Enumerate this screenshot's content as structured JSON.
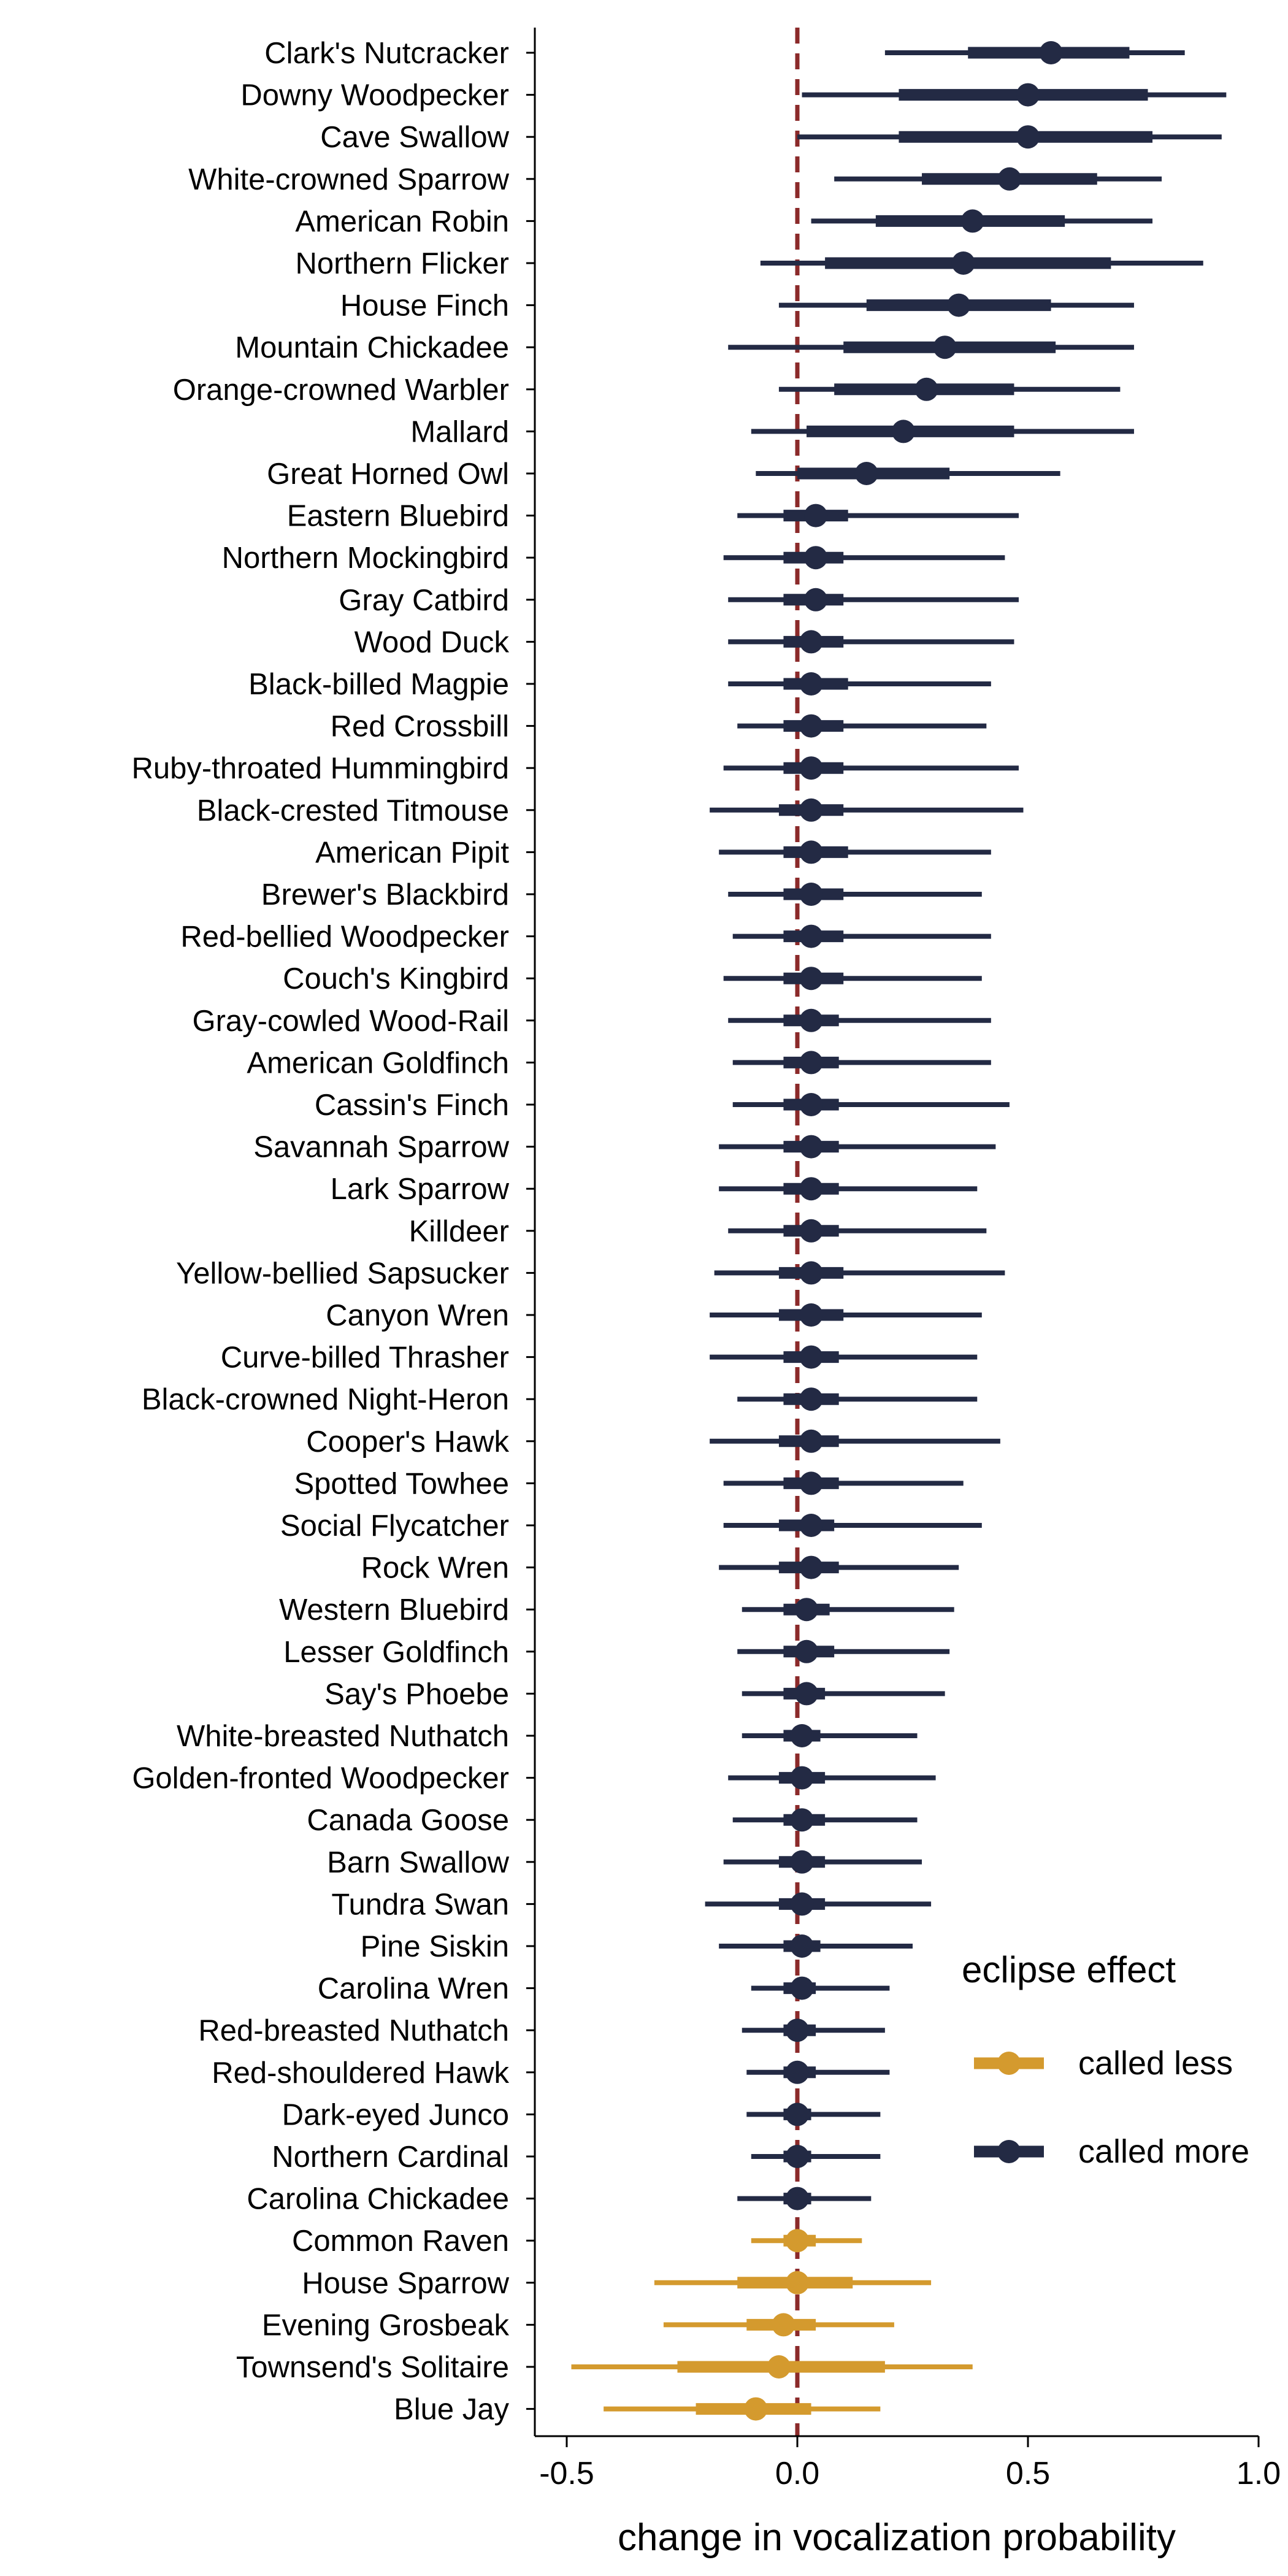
{
  "chart_data": {
    "type": "point-range",
    "xlabel": "change in vocalization probability",
    "ylabel": "",
    "xlim": [
      -0.57,
      1.0
    ],
    "xticks": [
      -0.5,
      0.0,
      0.5,
      1.0
    ],
    "xtick_labels": [
      "-0.5",
      "0.0",
      "0.5",
      "1.0"
    ],
    "reference_line": {
      "x": 0,
      "style": "dashed",
      "color": "#8B2A2A"
    },
    "grid": false,
    "legend": {
      "title": "eclipse effect",
      "placement": "right",
      "entries": [
        {
          "label": "called less",
          "color": "#D49A2E"
        },
        {
          "label": "called more",
          "color": "#232A44"
        }
      ]
    },
    "colors": {
      "called_less": "#D49A2E",
      "called_more": "#232A44"
    },
    "species": [
      {
        "name": "Clark's Nutcracker",
        "estimate": 0.55,
        "inner": [
          0.37,
          0.72
        ],
        "outer": [
          0.19,
          0.84
        ],
        "effect": "called more"
      },
      {
        "name": "Downy Woodpecker",
        "estimate": 0.5,
        "inner": [
          0.22,
          0.76
        ],
        "outer": [
          0.01,
          0.93
        ],
        "effect": "called more"
      },
      {
        "name": "Cave Swallow",
        "estimate": 0.5,
        "inner": [
          0.22,
          0.77
        ],
        "outer": [
          0.0,
          0.92
        ],
        "effect": "called more"
      },
      {
        "name": "White-crowned Sparrow",
        "estimate": 0.46,
        "inner": [
          0.27,
          0.65
        ],
        "outer": [
          0.08,
          0.79
        ],
        "effect": "called more"
      },
      {
        "name": "American Robin",
        "estimate": 0.38,
        "inner": [
          0.17,
          0.58
        ],
        "outer": [
          0.03,
          0.77
        ],
        "effect": "called more"
      },
      {
        "name": "Northern Flicker",
        "estimate": 0.36,
        "inner": [
          0.06,
          0.68
        ],
        "outer": [
          -0.08,
          0.88
        ],
        "effect": "called more"
      },
      {
        "name": "House Finch",
        "estimate": 0.35,
        "inner": [
          0.15,
          0.55
        ],
        "outer": [
          -0.04,
          0.73
        ],
        "effect": "called more"
      },
      {
        "name": "Mountain Chickadee",
        "estimate": 0.32,
        "inner": [
          0.1,
          0.56
        ],
        "outer": [
          -0.15,
          0.73
        ],
        "effect": "called more"
      },
      {
        "name": "Orange-crowned Warbler",
        "estimate": 0.28,
        "inner": [
          0.08,
          0.47
        ],
        "outer": [
          -0.04,
          0.7
        ],
        "effect": "called more"
      },
      {
        "name": "Mallard",
        "estimate": 0.23,
        "inner": [
          0.02,
          0.47
        ],
        "outer": [
          -0.1,
          0.73
        ],
        "effect": "called more"
      },
      {
        "name": "Great Horned Owl",
        "estimate": 0.15,
        "inner": [
          0.0,
          0.33
        ],
        "outer": [
          -0.09,
          0.57
        ],
        "effect": "called more"
      },
      {
        "name": "Eastern Bluebird",
        "estimate": 0.04,
        "inner": [
          -0.03,
          0.11
        ],
        "outer": [
          -0.13,
          0.48
        ],
        "effect": "called more"
      },
      {
        "name": "Northern Mockingbird",
        "estimate": 0.04,
        "inner": [
          -0.03,
          0.1
        ],
        "outer": [
          -0.16,
          0.45
        ],
        "effect": "called more"
      },
      {
        "name": "Gray Catbird",
        "estimate": 0.04,
        "inner": [
          -0.03,
          0.1
        ],
        "outer": [
          -0.15,
          0.48
        ],
        "effect": "called more"
      },
      {
        "name": "Wood Duck",
        "estimate": 0.03,
        "inner": [
          -0.03,
          0.1
        ],
        "outer": [
          -0.15,
          0.47
        ],
        "effect": "called more"
      },
      {
        "name": "Black-billed Magpie",
        "estimate": 0.03,
        "inner": [
          -0.03,
          0.11
        ],
        "outer": [
          -0.15,
          0.42
        ],
        "effect": "called more"
      },
      {
        "name": "Red Crossbill",
        "estimate": 0.03,
        "inner": [
          -0.03,
          0.1
        ],
        "outer": [
          -0.13,
          0.41
        ],
        "effect": "called more"
      },
      {
        "name": "Ruby-throated Hummingbird",
        "estimate": 0.03,
        "inner": [
          -0.03,
          0.1
        ],
        "outer": [
          -0.16,
          0.48
        ],
        "effect": "called more"
      },
      {
        "name": "Black-crested Titmouse",
        "estimate": 0.03,
        "inner": [
          -0.04,
          0.1
        ],
        "outer": [
          -0.19,
          0.49
        ],
        "effect": "called more"
      },
      {
        "name": "American Pipit",
        "estimate": 0.03,
        "inner": [
          -0.03,
          0.11
        ],
        "outer": [
          -0.17,
          0.42
        ],
        "effect": "called more"
      },
      {
        "name": "Brewer's Blackbird",
        "estimate": 0.03,
        "inner": [
          -0.03,
          0.1
        ],
        "outer": [
          -0.15,
          0.4
        ],
        "effect": "called more"
      },
      {
        "name": "Red-bellied Woodpecker",
        "estimate": 0.03,
        "inner": [
          -0.03,
          0.1
        ],
        "outer": [
          -0.14,
          0.42
        ],
        "effect": "called more"
      },
      {
        "name": "Couch's Kingbird",
        "estimate": 0.03,
        "inner": [
          -0.03,
          0.1
        ],
        "outer": [
          -0.16,
          0.4
        ],
        "effect": "called more"
      },
      {
        "name": "Gray-cowled Wood-Rail",
        "estimate": 0.03,
        "inner": [
          -0.03,
          0.09
        ],
        "outer": [
          -0.15,
          0.42
        ],
        "effect": "called more"
      },
      {
        "name": "American Goldfinch",
        "estimate": 0.03,
        "inner": [
          -0.03,
          0.09
        ],
        "outer": [
          -0.14,
          0.42
        ],
        "effect": "called more"
      },
      {
        "name": "Cassin's Finch",
        "estimate": 0.03,
        "inner": [
          -0.03,
          0.09
        ],
        "outer": [
          -0.14,
          0.46
        ],
        "effect": "called more"
      },
      {
        "name": "Savannah Sparrow",
        "estimate": 0.03,
        "inner": [
          -0.03,
          0.09
        ],
        "outer": [
          -0.17,
          0.43
        ],
        "effect": "called more"
      },
      {
        "name": "Lark Sparrow",
        "estimate": 0.03,
        "inner": [
          -0.03,
          0.09
        ],
        "outer": [
          -0.17,
          0.39
        ],
        "effect": "called more"
      },
      {
        "name": "Killdeer",
        "estimate": 0.03,
        "inner": [
          -0.03,
          0.09
        ],
        "outer": [
          -0.15,
          0.41
        ],
        "effect": "called more"
      },
      {
        "name": "Yellow-bellied Sapsucker",
        "estimate": 0.03,
        "inner": [
          -0.04,
          0.1
        ],
        "outer": [
          -0.18,
          0.45
        ],
        "effect": "called more"
      },
      {
        "name": "Canyon Wren",
        "estimate": 0.03,
        "inner": [
          -0.04,
          0.1
        ],
        "outer": [
          -0.19,
          0.4
        ],
        "effect": "called more"
      },
      {
        "name": "Curve-billed Thrasher",
        "estimate": 0.03,
        "inner": [
          -0.03,
          0.09
        ],
        "outer": [
          -0.19,
          0.39
        ],
        "effect": "called more"
      },
      {
        "name": "Black-crowned Night-Heron",
        "estimate": 0.03,
        "inner": [
          -0.03,
          0.09
        ],
        "outer": [
          -0.13,
          0.39
        ],
        "effect": "called more"
      },
      {
        "name": "Cooper's Hawk",
        "estimate": 0.03,
        "inner": [
          -0.04,
          0.09
        ],
        "outer": [
          -0.19,
          0.44
        ],
        "effect": "called more"
      },
      {
        "name": "Spotted Towhee",
        "estimate": 0.03,
        "inner": [
          -0.03,
          0.09
        ],
        "outer": [
          -0.16,
          0.36
        ],
        "effect": "called more"
      },
      {
        "name": "Social Flycatcher",
        "estimate": 0.03,
        "inner": [
          -0.04,
          0.08
        ],
        "outer": [
          -0.16,
          0.4
        ],
        "effect": "called more"
      },
      {
        "name": "Rock Wren",
        "estimate": 0.03,
        "inner": [
          -0.04,
          0.09
        ],
        "outer": [
          -0.17,
          0.35
        ],
        "effect": "called more"
      },
      {
        "name": "Western Bluebird",
        "estimate": 0.02,
        "inner": [
          -0.03,
          0.07
        ],
        "outer": [
          -0.12,
          0.34
        ],
        "effect": "called more"
      },
      {
        "name": "Lesser Goldfinch",
        "estimate": 0.02,
        "inner": [
          -0.03,
          0.08
        ],
        "outer": [
          -0.13,
          0.33
        ],
        "effect": "called more"
      },
      {
        "name": "Say's Phoebe",
        "estimate": 0.02,
        "inner": [
          -0.03,
          0.06
        ],
        "outer": [
          -0.12,
          0.32
        ],
        "effect": "called more"
      },
      {
        "name": "White-breasted Nuthatch",
        "estimate": 0.01,
        "inner": [
          -0.03,
          0.05
        ],
        "outer": [
          -0.12,
          0.26
        ],
        "effect": "called more"
      },
      {
        "name": "Golden-fronted Woodpecker",
        "estimate": 0.01,
        "inner": [
          -0.04,
          0.06
        ],
        "outer": [
          -0.15,
          0.3
        ],
        "effect": "called more"
      },
      {
        "name": "Canada Goose",
        "estimate": 0.01,
        "inner": [
          -0.03,
          0.06
        ],
        "outer": [
          -0.14,
          0.26
        ],
        "effect": "called more"
      },
      {
        "name": "Barn Swallow",
        "estimate": 0.01,
        "inner": [
          -0.04,
          0.06
        ],
        "outer": [
          -0.16,
          0.27
        ],
        "effect": "called more"
      },
      {
        "name": "Tundra Swan",
        "estimate": 0.01,
        "inner": [
          -0.04,
          0.06
        ],
        "outer": [
          -0.2,
          0.29
        ],
        "effect": "called more"
      },
      {
        "name": "Pine Siskin",
        "estimate": 0.01,
        "inner": [
          -0.03,
          0.05
        ],
        "outer": [
          -0.17,
          0.25
        ],
        "effect": "called more"
      },
      {
        "name": "Carolina Wren",
        "estimate": 0.01,
        "inner": [
          -0.03,
          0.04
        ],
        "outer": [
          -0.1,
          0.2
        ],
        "effect": "called more"
      },
      {
        "name": "Red-breasted Nuthatch",
        "estimate": 0.0,
        "inner": [
          -0.03,
          0.04
        ],
        "outer": [
          -0.12,
          0.19
        ],
        "effect": "called more"
      },
      {
        "name": "Red-shouldered Hawk",
        "estimate": 0.0,
        "inner": [
          -0.03,
          0.04
        ],
        "outer": [
          -0.11,
          0.2
        ],
        "effect": "called more"
      },
      {
        "name": "Dark-eyed Junco",
        "estimate": 0.0,
        "inner": [
          -0.03,
          0.03
        ],
        "outer": [
          -0.11,
          0.18
        ],
        "effect": "called more"
      },
      {
        "name": "Northern Cardinal",
        "estimate": 0.0,
        "inner": [
          -0.03,
          0.03
        ],
        "outer": [
          -0.1,
          0.18
        ],
        "effect": "called more"
      },
      {
        "name": "Carolina Chickadee",
        "estimate": 0.0,
        "inner": [
          -0.03,
          0.03
        ],
        "outer": [
          -0.13,
          0.16
        ],
        "effect": "called more"
      },
      {
        "name": "Common Raven",
        "estimate": 0.0,
        "inner": [
          -0.03,
          0.04
        ],
        "outer": [
          -0.1,
          0.14
        ],
        "effect": "called less"
      },
      {
        "name": "House Sparrow",
        "estimate": 0.0,
        "inner": [
          -0.13,
          0.12
        ],
        "outer": [
          -0.31,
          0.29
        ],
        "effect": "called less"
      },
      {
        "name": "Evening Grosbeak",
        "estimate": -0.03,
        "inner": [
          -0.11,
          0.04
        ],
        "outer": [
          -0.29,
          0.21
        ],
        "effect": "called less"
      },
      {
        "name": "Townsend's Solitaire",
        "estimate": -0.04,
        "inner": [
          -0.26,
          0.19
        ],
        "outer": [
          -0.49,
          0.38
        ],
        "effect": "called less"
      },
      {
        "name": "Blue Jay",
        "estimate": -0.09,
        "inner": [
          -0.22,
          0.03
        ],
        "outer": [
          -0.42,
          0.18
        ],
        "effect": "called less"
      }
    ]
  }
}
